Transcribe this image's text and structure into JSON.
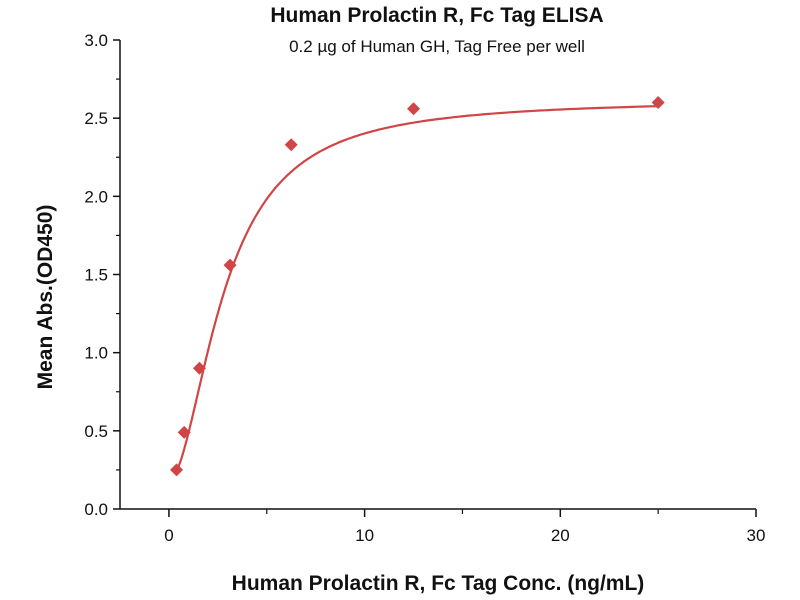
{
  "chart_data": {
    "type": "scatter",
    "title": "Human Prolactin R, Fc Tag ELISA",
    "subtitle": "0.2 µg of Human GH, Tag Free per well",
    "xlabel": "Human Prolactin R, Fc Tag Conc. (ng/mL)",
    "ylabel": "Mean Abs.(OD450)",
    "xlim": [
      -2.5,
      30
    ],
    "ylim": [
      0,
      3.0
    ],
    "xticks": [
      "0",
      "10",
      "20",
      "30"
    ],
    "yticks": [
      "0.0",
      "0.5",
      "1.0",
      "1.5",
      "2.0",
      "2.5",
      "3.0"
    ],
    "grid": false,
    "series": [
      {
        "marker": "diamond",
        "color": "#d04545",
        "fit_line": "sigmoidal",
        "x": [
          0.39,
          0.78,
          1.56,
          3.125,
          6.25,
          12.5,
          25
        ],
        "y": [
          0.25,
          0.49,
          0.9,
          1.56,
          2.33,
          2.56,
          2.6
        ]
      }
    ]
  }
}
